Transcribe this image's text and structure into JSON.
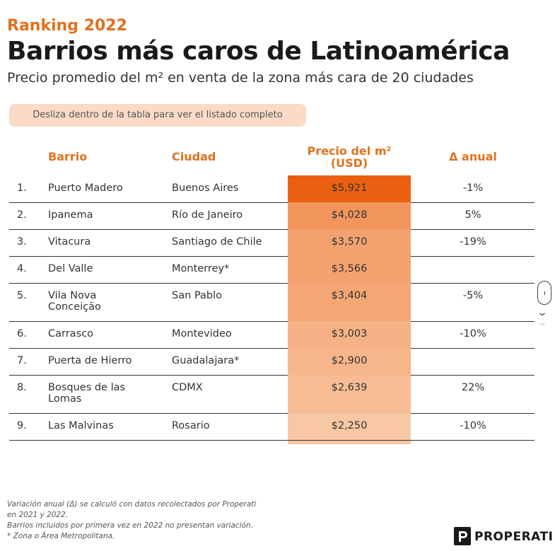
{
  "header": {
    "kicker": "Ranking 2022",
    "title": "Barrios más caros de Latinoamérica",
    "subtitle": "Precio promedio del m² en venta de la zona más cara de 20 ciudades",
    "hint": "Desliza dentro de la tabla para ver el listado completo"
  },
  "columns": {
    "barrio": "Barrio",
    "ciudad": "Ciudad",
    "precio_line1": "Precio del m²",
    "precio_line2": "(USD)",
    "delta": "Δ anual"
  },
  "colors": {
    "accent": "#e2711d",
    "bar_max": "#eb6010",
    "bar_min": "#f8c7a4"
  },
  "chart_data": {
    "type": "table",
    "title": "Barrios más caros de Latinoamérica",
    "subtitle": "Precio promedio del m² en venta de la zona más cara de 20 ciudades",
    "columns": [
      "Barrio",
      "Ciudad",
      "Precio del m² (USD)",
      "Δ anual"
    ],
    "rows": [
      {
        "rank": "1.",
        "barrio": "Puerto Madero",
        "ciudad": "Buenos Aires",
        "price": 5921,
        "price_label": "$5,921",
        "delta": "-1%"
      },
      {
        "rank": "2.",
        "barrio": "Ipanema",
        "ciudad": "Río de Janeiro",
        "price": 4028,
        "price_label": "$4,028",
        "delta": "5%"
      },
      {
        "rank": "3.",
        "barrio": "Vitacura",
        "ciudad": "Santiago de Chile",
        "price": 3570,
        "price_label": "$3,570",
        "delta": "-19%"
      },
      {
        "rank": "4.",
        "barrio": "Del Valle",
        "ciudad": "Monterrey*",
        "price": 3566,
        "price_label": "$3,566",
        "delta": ""
      },
      {
        "rank": "5.",
        "barrio": "Vila Nova Conceição",
        "ciudad": "San Pablo",
        "price": 3404,
        "price_label": "$3,404",
        "delta": "-5%"
      },
      {
        "rank": "6.",
        "barrio": "Carrasco",
        "ciudad": "Montevideo",
        "price": 3003,
        "price_label": "$3,003",
        "delta": "-10%"
      },
      {
        "rank": "7.",
        "barrio": "Puerta de Hierro",
        "ciudad": "Guadalajara*",
        "price": 2900,
        "price_label": "$2,900",
        "delta": ""
      },
      {
        "rank": "8.",
        "barrio": "Bosques de las Lomas",
        "ciudad": "CDMX",
        "price": 2639,
        "price_label": "$2,639",
        "delta": "22%"
      },
      {
        "rank": "9.",
        "barrio": "Las Malvinas",
        "ciudad": "Rosario",
        "price": 2250,
        "price_label": "$2,250",
        "delta": "-10%"
      }
    ]
  },
  "footnote": {
    "line1": "Variación anual  (Δ)  se calculó con datos recolectados por Properati",
    "line2": "en 2021 y 2022.",
    "line3": "Barrios incluidos por primera vez en 2022 no presentan variación.",
    "line4": "* Zona o Área Metropolitana."
  },
  "brand": {
    "logo_text": "PROPERATI",
    "logo_icon": "properati-logo-icon"
  },
  "scroll_icon": "scroll-mouse-icon",
  "chevron_icon": "chevron-down-icon"
}
